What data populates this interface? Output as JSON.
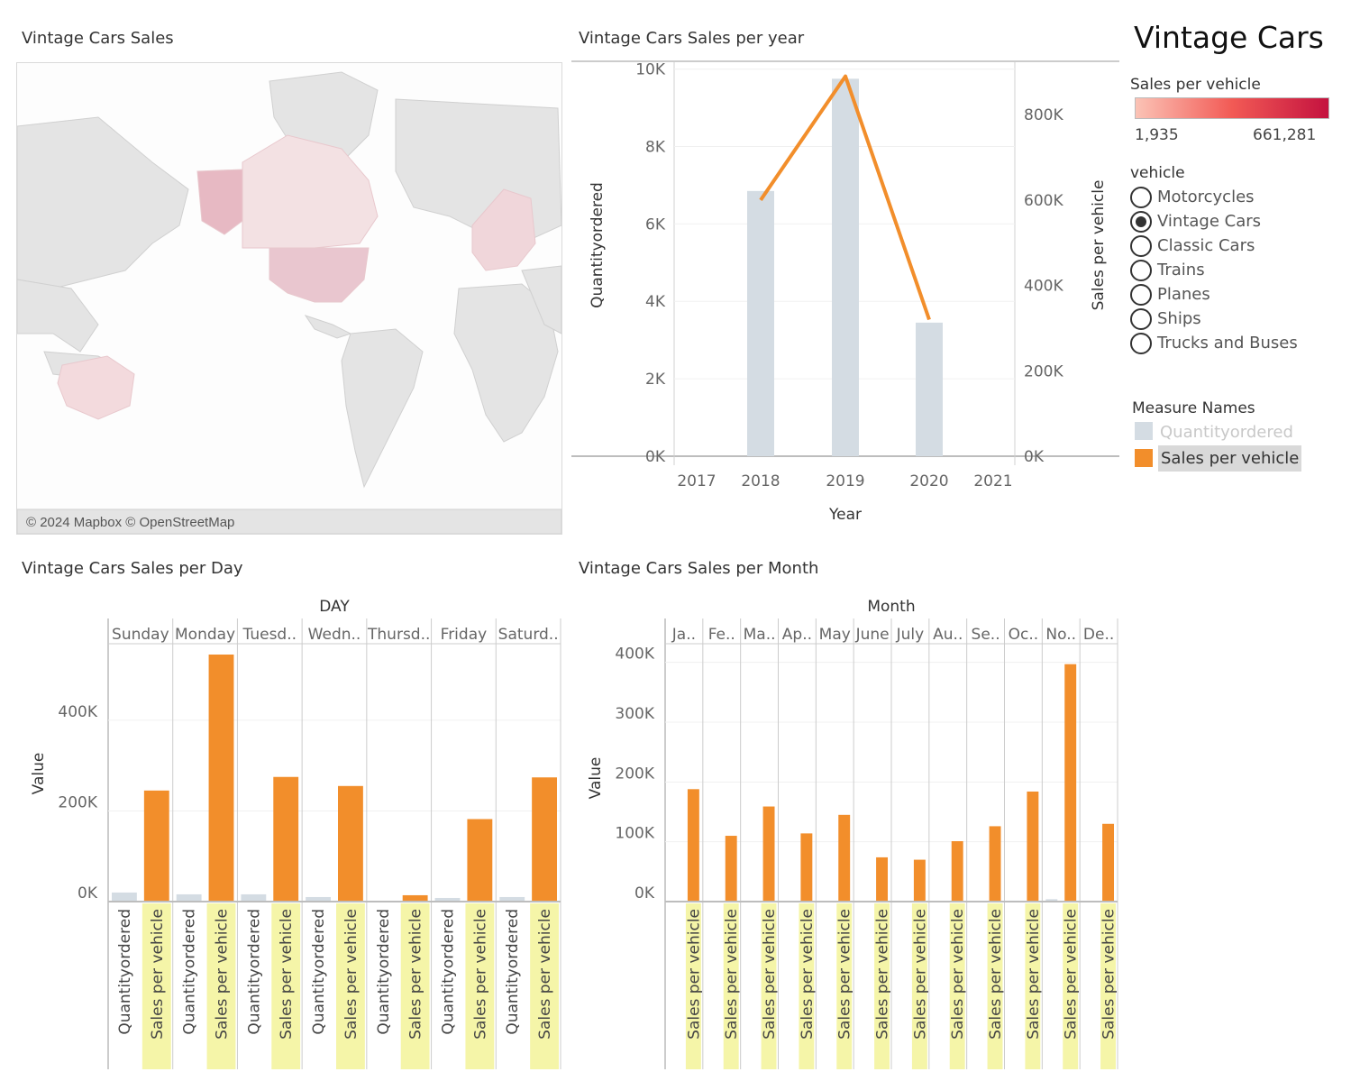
{
  "dashboard_title": "Vintage Cars",
  "map": {
    "title": "Vintage Cars Sales",
    "attribution": "© 2024 Mapbox © OpenStreetMap"
  },
  "color_legend": {
    "title": "Sales per vehicle",
    "min_label": "1,935",
    "max_label": "661,281",
    "gradient_start": "#fbc3b6",
    "gradient_end": "#c4123f"
  },
  "vehicle_filter": {
    "title": "vehicle",
    "options": [
      "Motorcycles",
      "Vintage Cars",
      "Classic Cars",
      "Trains",
      "Planes",
      "Ships",
      "Trucks and Buses"
    ],
    "selected": "Vintage Cars"
  },
  "measure_legend": {
    "title": "Measure Names",
    "items": [
      {
        "label": "Quantityordered",
        "color": "#d4dce3"
      },
      {
        "label": "Sales per vehicle",
        "color": "#f28e2b"
      }
    ]
  },
  "colors": {
    "quantity": "#d4dce3",
    "sales": "#f28e2b",
    "highlight_label_bg": "#f5f5a8"
  },
  "chart_data": [
    {
      "type": "bar",
      "title": "Vintage Cars Sales per year",
      "xlabel": "Year",
      "ylabel": "Quantityordered",
      "y2label": "Sales per vehicle",
      "x_ticks": [
        "2017",
        "2018",
        "2019",
        "2020",
        "2021"
      ],
      "y_ticks": [
        "0K",
        "2K",
        "4K",
        "6K",
        "8K",
        "10K"
      ],
      "y2_ticks": [
        "0K",
        "200K",
        "400K",
        "600K",
        "800K"
      ],
      "ylim": [
        0,
        10200
      ],
      "y2lim": [
        0,
        925000
      ],
      "series": [
        {
          "name": "Quantityordered",
          "kind": "bar",
          "x": [
            "2018",
            "2019",
            "2020"
          ],
          "values": [
            6850,
            9750,
            3450
          ]
        },
        {
          "name": "Sales per vehicle",
          "kind": "line",
          "x": [
            "2018",
            "2019",
            "2020"
          ],
          "values": [
            600000,
            890000,
            320000
          ]
        }
      ]
    },
    {
      "type": "bar",
      "title": "Vintage Cars Sales per Day",
      "column_header": "DAY",
      "ylabel": "Value",
      "y_ticks": [
        "0K",
        "200K",
        "400K"
      ],
      "ylim": [
        0,
        545000
      ],
      "categories": [
        "Sunday",
        "Monday",
        "Tuesd..",
        "Wedn..",
        "Thursd..",
        "Friday",
        "Saturd.."
      ],
      "sub_labels": [
        "Quantityordered",
        "Sales per vehicle"
      ],
      "series": [
        {
          "name": "Quantityordered",
          "values": [
            20000,
            16000,
            16000,
            10000,
            1500,
            8000,
            10000
          ]
        },
        {
          "name": "Sales per vehicle",
          "values": [
            245000,
            545000,
            275000,
            255000,
            14000,
            182000,
            274000
          ]
        }
      ]
    },
    {
      "type": "bar",
      "title": "Vintage Cars Sales per Month",
      "column_header": "Month",
      "ylabel": "Value",
      "y_ticks": [
        "0K",
        "100K",
        "200K",
        "300K",
        "400K"
      ],
      "ylim": [
        0,
        398000
      ],
      "categories": [
        "Ja..",
        "Fe..",
        "Ma..",
        "Ap..",
        "May",
        "June",
        "July",
        "Au..",
        "Se..",
        "Oc..",
        "No..",
        "De.."
      ],
      "sub_labels": [
        "Sales per vehicle"
      ],
      "series": [
        {
          "name": "Quantityordered",
          "values": [
            1500,
            1200,
            1400,
            1100,
            1300,
            800,
            800,
            1000,
            1300,
            1600,
            4000,
            1300
          ]
        },
        {
          "name": "Sales per vehicle",
          "values": [
            188000,
            110000,
            159000,
            114000,
            145000,
            74000,
            70000,
            101000,
            126000,
            184000,
            397000,
            130000
          ]
        }
      ]
    }
  ]
}
